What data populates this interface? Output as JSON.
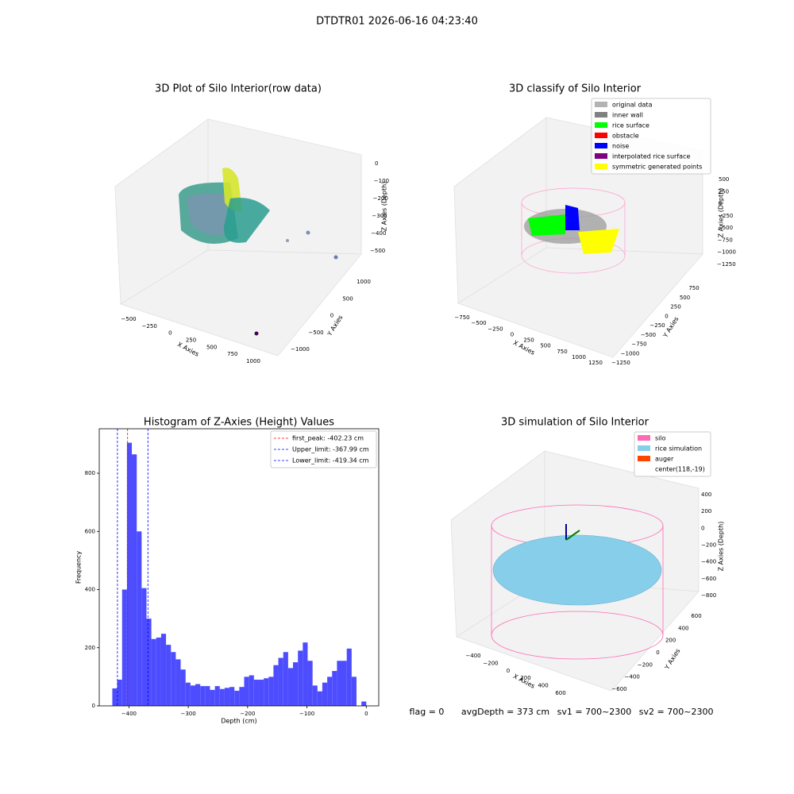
{
  "title": "DTDTR01 2026-06-16 04:23:40",
  "status": [
    "flag = 0",
    "avgDepth = 373 cm",
    "sv1 = 700~2300",
    "sv2 = 700~2300"
  ],
  "chart_data": [
    {
      "type": "scatter3d",
      "title": "3D Plot of Silo Interior(row data)",
      "xlabel": "X Axies",
      "ylabel": "Y Axies",
      "zlabel": "Z Axies (Depth)",
      "xticks": [
        {
          "value": -500,
          "label": "−500"
        },
        {
          "value": -250,
          "label": "−250"
        },
        0,
        250,
        500,
        750,
        1000
      ],
      "yticks": [
        {
          "value": -1000,
          "label": "−1000"
        },
        {
          "value": -500,
          "label": "−500"
        },
        0,
        500,
        1000
      ],
      "zticks": [
        {
          "value": -500,
          "label": "−500"
        },
        {
          "value": -400,
          "label": "−400"
        },
        {
          "value": -300,
          "label": "−300"
        },
        {
          "value": -200,
          "label": "−200"
        },
        {
          "value": -100,
          "label": "−100"
        },
        0
      ]
    },
    {
      "type": "scatter3d",
      "title": "3D classify of Silo Interior",
      "xlabel": "X Axies",
      "ylabel": "Y Axies",
      "zlabel": "Z Axies (Depth)",
      "xticks": [
        {
          "value": -750,
          "label": "−750"
        },
        {
          "value": -500,
          "label": "−500"
        },
        {
          "value": -250,
          "label": "−250"
        },
        0,
        250,
        500,
        750,
        1000,
        1250
      ],
      "yticks": [
        {
          "value": -1250,
          "label": "−1250"
        },
        {
          "value": -1000,
          "label": "−1000"
        },
        {
          "value": -750,
          "label": "−750"
        },
        {
          "value": -500,
          "label": "−500"
        },
        {
          "value": -250,
          "label": "−250"
        },
        0,
        250,
        500,
        750
      ],
      "zticks": [
        {
          "value": -1250,
          "label": "−1250"
        },
        {
          "value": -1000,
          "label": "−1000"
        },
        {
          "value": -750,
          "label": "−750"
        },
        {
          "value": -500,
          "label": "−500"
        },
        {
          "value": -250,
          "label": "−250"
        },
        0,
        250,
        500
      ],
      "legend": [
        {
          "name": "original data",
          "color": "#b3b3b3"
        },
        {
          "name": "inner wall",
          "color": "#808080"
        },
        {
          "name": "rice surface",
          "color": "#00ff00"
        },
        {
          "name": "obstacle",
          "color": "#ff0000"
        },
        {
          "name": "noise",
          "color": "#0000ff"
        },
        {
          "name": "interpolated rice surface",
          "color": "#800080"
        },
        {
          "name": "symmetric generated points",
          "color": "#ffff00"
        }
      ]
    },
    {
      "type": "histogram",
      "title": "Histogram of Z-Axies (Height) Values",
      "xlabel": "Depth (cm)",
      "ylabel": "Frequency",
      "color": "#4d4dff",
      "bins": [
        -428.0,
        -419.8,
        -411.5,
        -403.3,
        -395.1,
        -386.8,
        -378.6,
        -370.4,
        -362.2,
        -353.9,
        -345.7,
        -337.5,
        -329.2,
        -321.0,
        -312.8,
        -304.5,
        -296.3,
        -288.1,
        -279.8,
        -271.6,
        -263.4,
        -255.1,
        -246.9,
        -238.7,
        -230.5,
        -222.2,
        -214.0,
        -205.8,
        -197.5,
        -189.3,
        -181.1,
        -172.8,
        -164.6,
        -156.4,
        -148.2,
        -139.9,
        -131.7,
        -123.5,
        -115.2,
        -107.0,
        -98.8,
        -90.5,
        -82.3,
        -74.1,
        -65.8,
        -57.6,
        -49.4,
        -41.2,
        -32.9,
        -24.7,
        -16.5,
        -8.2,
        0.0
      ],
      "values": [
        60,
        90,
        400,
        905,
        865,
        600,
        405,
        300,
        230,
        235,
        248,
        210,
        185,
        160,
        125,
        80,
        70,
        75,
        68,
        68,
        55,
        68,
        58,
        62,
        65,
        52,
        65,
        100,
        105,
        90,
        90,
        95,
        100,
        140,
        165,
        185,
        130,
        150,
        190,
        218,
        155,
        70,
        50,
        80,
        100,
        120,
        155,
        155,
        197,
        100,
        0,
        15
      ],
      "xlim": [
        -450,
        21
      ],
      "ylim": [
        0,
        953
      ],
      "xticks": [
        {
          "value": -400,
          "label": "−400"
        },
        {
          "value": -300,
          "label": "−300"
        },
        {
          "value": -200,
          "label": "−200"
        },
        {
          "value": -100,
          "label": "−100"
        },
        0
      ],
      "yticks": [
        0,
        200,
        400,
        600,
        800
      ],
      "lines": [
        {
          "name": "first_peak: -402.23 cm",
          "value": -402.23,
          "color": "#ff0000"
        },
        {
          "name": "Upper_limit: -367.99 cm",
          "value": -367.99,
          "color": "#0000ff"
        },
        {
          "name": "Lower_limit: -419.34 cm",
          "value": -419.34,
          "color": "#0000ff"
        }
      ],
      "legend_loc": "upper right"
    },
    {
      "type": "scatter3d",
      "title": "3D simulation of Silo Interior",
      "xlabel": "X Axies",
      "ylabel": "Y Axies",
      "zlabel": "Z Axies (Depth)",
      "xticks": [
        {
          "value": -400,
          "label": "−400"
        },
        {
          "value": -200,
          "label": "−200"
        },
        0,
        200,
        400,
        600
      ],
      "yticks": [
        {
          "value": -600,
          "label": "−600"
        },
        {
          "value": -400,
          "label": "−400"
        },
        {
          "value": -200,
          "label": "−200"
        },
        0,
        200,
        400,
        600
      ],
      "zticks": [
        {
          "value": -800,
          "label": "−800"
        },
        {
          "value": -600,
          "label": "−600"
        },
        {
          "value": -400,
          "label": "−400"
        },
        {
          "value": -200,
          "label": "−200"
        },
        0,
        200,
        400
      ],
      "legend": [
        {
          "name": "silo",
          "color": "#ff69b4"
        },
        {
          "name": "rice simulation",
          "color": "#87ceeb"
        },
        {
          "name": "auger",
          "color": "#ff4500"
        },
        {
          "name": "center(118,-19)"
        }
      ]
    }
  ]
}
